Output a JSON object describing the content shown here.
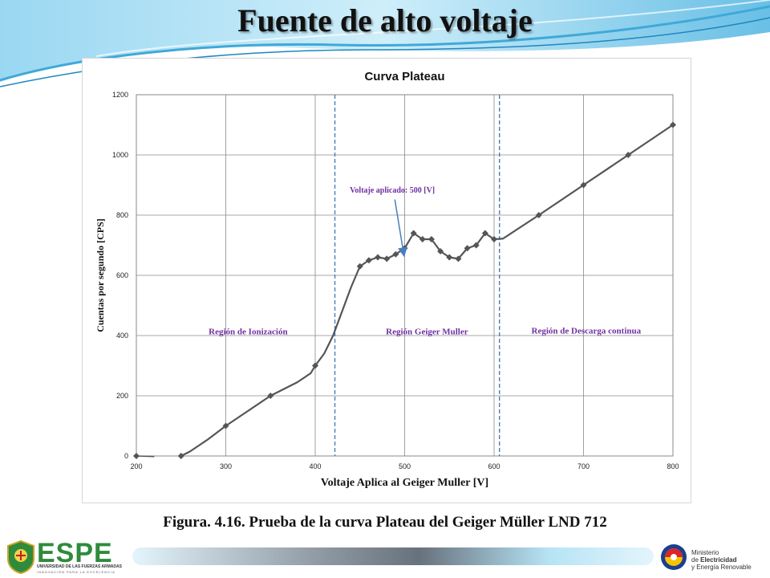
{
  "slide": {
    "title": "Fuente de alto voltaje",
    "caption": "Figura. 4.16. Prueba de la curva Plateau del Geiger Müller LND 712"
  },
  "footer": {
    "left_logo": {
      "name": "ESPE",
      "subtitle": "UNIVERSIDAD DE LAS FUERZAS ARMADAS",
      "tagline": "INNOVACIÓN PARA LA EXCELENCIA"
    },
    "right_logo": {
      "line1": "Ministerio",
      "line2_prefix": "de ",
      "line2_bold": "Electricidad",
      "line3": "y Energía Renovable"
    }
  },
  "colors": {
    "series": "#555555",
    "annotation": "#7030a0",
    "divider": "#4a7ebb",
    "arrow": "#4a7ebb",
    "banner": "#3fa9d8"
  },
  "chart_data": {
    "type": "line",
    "title": "Curva Plateau",
    "xlabel": "Voltaje Aplica al Geiger Muller  [V]",
    "ylabel": "Cuentas  por  segundo  [CPS]",
    "xlim": [
      200,
      800
    ],
    "ylim": [
      0,
      1200
    ],
    "xticks": [
      200,
      300,
      400,
      500,
      600,
      700,
      800
    ],
    "yticks": [
      0,
      200,
      400,
      600,
      800,
      1000,
      1200
    ],
    "grid": true,
    "series": [
      {
        "markers": [
          [
            200,
            0
          ],
          [
            250,
            0
          ],
          [
            300,
            100
          ],
          [
            350,
            200
          ],
          [
            400,
            300
          ],
          [
            450,
            630
          ],
          [
            460,
            650
          ],
          [
            470,
            660
          ],
          [
            480,
            655
          ],
          [
            490,
            670
          ],
          [
            500,
            690
          ],
          [
            510,
            740
          ],
          [
            520,
            720
          ],
          [
            530,
            720
          ],
          [
            540,
            680
          ],
          [
            550,
            660
          ],
          [
            560,
            655
          ],
          [
            570,
            690
          ],
          [
            580,
            700
          ],
          [
            590,
            740
          ],
          [
            600,
            720
          ],
          [
            650,
            800
          ],
          [
            700,
            900
          ],
          [
            750,
            1000
          ],
          [
            800,
            1100
          ]
        ],
        "line": [
          [
            250,
            0
          ],
          [
            260,
            15
          ],
          [
            280,
            55
          ],
          [
            300,
            100
          ],
          [
            320,
            140
          ],
          [
            350,
            200
          ],
          [
            380,
            245
          ],
          [
            395,
            275
          ],
          [
            400,
            300
          ],
          [
            410,
            340
          ],
          [
            420,
            400
          ],
          [
            430,
            480
          ],
          [
            440,
            560
          ],
          [
            450,
            630
          ],
          [
            460,
            650
          ],
          [
            470,
            660
          ],
          [
            480,
            655
          ],
          [
            490,
            670
          ],
          [
            500,
            690
          ],
          [
            510,
            740
          ],
          [
            520,
            720
          ],
          [
            530,
            720
          ],
          [
            540,
            680
          ],
          [
            550,
            660
          ],
          [
            560,
            655
          ],
          [
            570,
            690
          ],
          [
            580,
            700
          ],
          [
            590,
            740
          ],
          [
            600,
            720
          ],
          [
            610,
            722
          ],
          [
            650,
            800
          ],
          [
            700,
            900
          ],
          [
            750,
            1000
          ],
          [
            800,
            1100
          ]
        ],
        "lead_in": [
          [
            200,
            0
          ],
          [
            220,
            -2
          ]
        ]
      }
    ],
    "dividers": [
      422,
      606
    ],
    "regions": [
      {
        "label": "Región de Ionización",
        "x": 325,
        "y": 425
      },
      {
        "label": "Región Geiger Muller",
        "x": 525,
        "y": 425
      },
      {
        "label": "Región de Descarga continua",
        "x": 703,
        "y": 428
      }
    ],
    "annotation": {
      "text": "Voltaje aplicado:  500 [V]",
      "x": 488,
      "y": 885,
      "target": [
        500,
        690
      ]
    }
  }
}
